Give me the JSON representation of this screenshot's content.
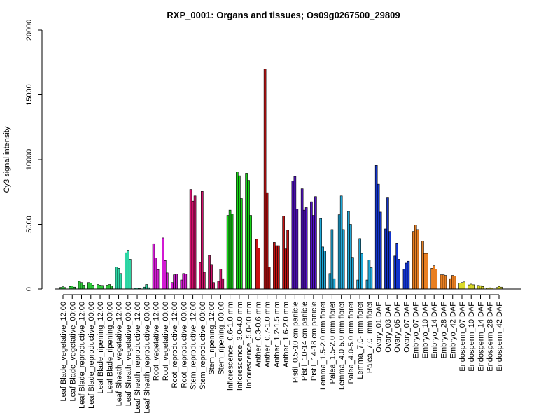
{
  "chart_data": {
    "type": "bar",
    "title": "RXP_0001: Organs and tissues; Os09g0267500_29809",
    "xlabel": "",
    "ylabel": "Cy3 signal intensity",
    "ylim": [
      0,
      20000
    ],
    "yticks": [
      0,
      5000,
      10000,
      15000,
      20000
    ],
    "grid": false,
    "legend": "none",
    "groups": [
      {
        "label": "Leaf Blade_vegetative_12:00",
        "color": "#2fcb3b",
        "values": [
          130,
          180,
          120
        ]
      },
      {
        "label": "Leaf Blade_vegetative_00:00",
        "color": "#2fcb3b",
        "values": [
          200,
          240,
          150
        ]
      },
      {
        "label": "Leaf Blade_reproductive_12:00",
        "color": "#2fcb3b",
        "values": [
          600,
          500,
          300
        ]
      },
      {
        "label": "Leaf Blade_reproductive_00:00",
        "color": "#2fcb3b",
        "values": [
          500,
          450,
          300
        ]
      },
      {
        "label": "Leaf Blade_ripening_12:00",
        "color": "#2fcb3b",
        "values": [
          350,
          300,
          280
        ]
      },
      {
        "label": "Leaf Blade_ripening_00:00",
        "color": "#2fcb3b",
        "values": [
          300,
          350,
          250
        ]
      },
      {
        "label": "Leaf Sheath_vegetative_12:00",
        "color": "#2ed8a6",
        "values": [
          1700,
          1600,
          1200
        ]
      },
      {
        "label": "Leaf Sheath_vegetative_00:00",
        "color": "#2ed8a6",
        "values": [
          2800,
          3000,
          2300
        ]
      },
      {
        "label": "Leaf Sheath_reproductive_12:00",
        "color": "#2ed8a6",
        "values": [
          60,
          80,
          50
        ]
      },
      {
        "label": "Leaf Sheath_reproductive_00:00",
        "color": "#2ed8a6",
        "values": [
          150,
          350,
          100
        ]
      },
      {
        "label": "Root_vegetative_12:00",
        "color": "#d21ad3",
        "values": [
          3500,
          2400,
          1500
        ]
      },
      {
        "label": "Root_vegetative_00:00",
        "color": "#d21ad3",
        "values": [
          3950,
          2200,
          1250
        ]
      },
      {
        "label": "Root_reproductive_12:00",
        "color": "#d21ad3",
        "values": [
          500,
          1100,
          1150
        ]
      },
      {
        "label": "Root_reproductive_00:00",
        "color": "#d21ad3",
        "values": [
          700,
          1200,
          1150
        ]
      },
      {
        "label": "Stem_reproductive_12:00",
        "color": "#d1106b",
        "values": [
          7700,
          6800,
          7200
        ]
      },
      {
        "label": "Stem_reproductive_00:00",
        "color": "#d1106b",
        "values": [
          2050,
          7550,
          1300
        ]
      },
      {
        "label": "Stem_ripening_12:00",
        "color": "#d1106b",
        "values": [
          2600,
          1900,
          500
        ]
      },
      {
        "label": "Stem_ripening_00:00",
        "color": "#d1106b",
        "values": [
          600,
          1550,
          800
        ]
      },
      {
        "label": "Inflorescence_0.6-1.0 mm",
        "color": "#17d617",
        "values": [
          5700,
          6100,
          5800
        ]
      },
      {
        "label": "Inflorescence_3.0-4.0 mm",
        "color": "#17d617",
        "values": [
          9050,
          8750,
          7000
        ]
      },
      {
        "label": "Inflorescence_5.0-10 mm",
        "color": "#17d617",
        "values": [
          8950,
          8400,
          5700
        ]
      },
      {
        "label": "Anther_0.3-0.6 mm",
        "color": "#c81212",
        "values": [
          3850,
          3150
        ]
      },
      {
        "label": "Anther_0.7-1.0 mm",
        "color": "#c81212",
        "values": [
          17000,
          7450,
          1700
        ]
      },
      {
        "label": "Anther_1.2-1.5 mm",
        "color": "#c81212",
        "values": [
          3600,
          3350,
          3350
        ]
      },
      {
        "label": "Anther_1.6-2.0 mm",
        "color": "#c81212",
        "values": [
          5650,
          3100,
          4550
        ]
      },
      {
        "label": "Pistil_0.5-10 cm panicle",
        "color": "#5511cc",
        "values": [
          8350,
          8700,
          6200
        ]
      },
      {
        "label": "Pistil_10-14 cm panicle",
        "color": "#5511cc",
        "values": [
          7750,
          6100,
          6300
        ]
      },
      {
        "label": "Pistil_14-18 cm panicle",
        "color": "#5511cc",
        "values": [
          6750,
          5700,
          7150
        ]
      },
      {
        "label": "Lemma_1.5-2.0 mm floret",
        "color": "#1ea8d8",
        "values": [
          5450,
          3250,
          2950
        ]
      },
      {
        "label": "Palea_1.5-2.0 mm floret",
        "color": "#1ea8d8",
        "values": [
          1200,
          4600,
          800
        ]
      },
      {
        "label": "Lemma_4.0-5.0 mm floret",
        "color": "#1ea8d8",
        "values": [
          5750,
          7200,
          4600
        ]
      },
      {
        "label": "Palea_4.0-5.0 mm floret",
        "color": "#1ea8d8",
        "values": [
          6000,
          5000,
          2450
        ]
      },
      {
        "label": "Lemma_7.0- mm floret",
        "color": "#1ea8d8",
        "values": [
          700,
          3900,
          2750
        ]
      },
      {
        "label": "Palea_7.0- mm floret",
        "color": "#1ea8d8",
        "values": [
          700,
          2250,
          1650
        ]
      },
      {
        "label": "Ovary_01 DAF",
        "color": "#1133cc",
        "values": [
          9550,
          8100,
          5950
        ]
      },
      {
        "label": "Ovary_03 DAF",
        "color": "#1133cc",
        "values": [
          4650,
          7050,
          4450
        ]
      },
      {
        "label": "Ovary_05 DAF",
        "color": "#1133cc",
        "values": [
          2550,
          3550,
          2300
        ]
      },
      {
        "label": "Ovary_07 DAF",
        "color": "#1133cc",
        "values": [
          1550,
          2000,
          2150
        ]
      },
      {
        "label": "Embryo_07 DAF",
        "color": "#ea7f21",
        "values": [
          4450,
          4950,
          4600
        ]
      },
      {
        "label": "Embryo_10 DAF",
        "color": "#ea7f21",
        "values": [
          3700,
          2750,
          2750
        ]
      },
      {
        "label": "Embryo_14 DAF",
        "color": "#ea7f21",
        "values": [
          1600,
          1800,
          1550
        ]
      },
      {
        "label": "Embryo_28 DAF",
        "color": "#ea7f21",
        "values": [
          1100,
          1100,
          1050
        ]
      },
      {
        "label": "Embryo_42 DAF",
        "color": "#ea7f21",
        "values": [
          800,
          1050,
          1000
        ]
      },
      {
        "label": "Endosperm_07 DAF",
        "color": "#dada2a",
        "values": [
          450,
          500,
          550
        ]
      },
      {
        "label": "Endosperm_10 DAF",
        "color": "#dada2a",
        "values": [
          320,
          380,
          330
        ]
      },
      {
        "label": "Endosperm_14 DAF",
        "color": "#dada2a",
        "values": [
          280,
          260,
          200
        ]
      },
      {
        "label": "Endosperm_28 DAF",
        "color": "#dada2a",
        "values": [
          90,
          100,
          80
        ]
      },
      {
        "label": "Endosperm_42 DAF",
        "color": "#dada2a",
        "values": [
          120,
          200,
          150
        ]
      }
    ]
  }
}
